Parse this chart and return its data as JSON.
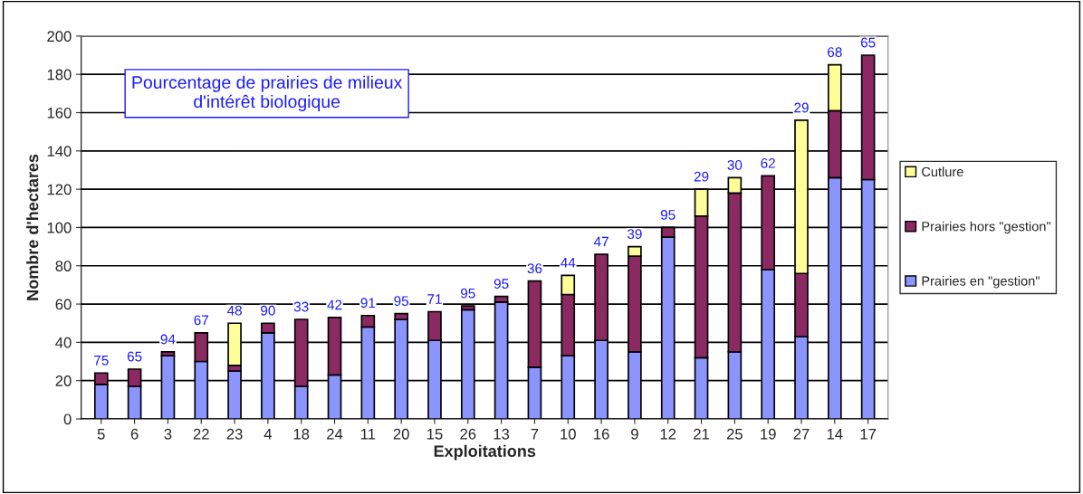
{
  "chart_data": {
    "type": "bar",
    "stacked": true,
    "title": "Pourcentage de prairies de milieux d'intérêt biologique",
    "xlabel": "Exploitations",
    "ylabel": "Nombre d'hectares",
    "categories": [
      "5",
      "6",
      "3",
      "22",
      "23",
      "4",
      "18",
      "24",
      "11",
      "20",
      "15",
      "26",
      "13",
      "7",
      "10",
      "16",
      "9",
      "12",
      "21",
      "25",
      "19",
      "27",
      "14",
      "17"
    ],
    "series": [
      {
        "name": "Prairies en \"gestion\"",
        "color": "#8c94ff",
        "values": [
          18,
          17,
          33,
          30,
          25,
          45,
          17,
          23,
          48,
          52,
          41,
          57,
          61,
          27,
          33,
          41,
          35,
          95,
          32,
          35,
          78,
          43,
          126,
          125
        ]
      },
      {
        "name": "Prairies hors \"gestion\"",
        "color": "#8b2a62",
        "values": [
          6,
          9,
          2,
          15,
          3,
          5,
          35,
          30,
          6,
          3,
          15,
          2,
          3,
          45,
          32,
          45,
          50,
          5,
          74,
          83,
          49,
          33,
          35,
          65
        ]
      },
      {
        "name": "Cutlure",
        "color": "#ffff99",
        "values": [
          null,
          null,
          null,
          null,
          22,
          null,
          null,
          null,
          null,
          null,
          null,
          null,
          null,
          null,
          10,
          null,
          5,
          null,
          14,
          8,
          null,
          80,
          24,
          null
        ]
      }
    ],
    "ylim": [
      0,
      200
    ],
    "yticks": [
      0,
      20,
      40,
      60,
      80,
      100,
      120,
      140,
      160,
      180,
      200
    ],
    "grid": "y",
    "legend": "right",
    "annotations": [
      {
        "text": "75",
        "x": "5",
        "y": 24
      },
      {
        "text": "65",
        "x": "6",
        "y": 26
      },
      {
        "text": "94",
        "x": "3",
        "y": 35
      },
      {
        "text": "67",
        "x": "22",
        "y": 45
      },
      {
        "text": "48",
        "x": "23",
        "y": 50
      },
      {
        "text": "90",
        "x": "4",
        "y": 50
      },
      {
        "text": "33",
        "x": "18",
        "y": 52
      },
      {
        "text": "42",
        "x": "24",
        "y": 53
      },
      {
        "text": "91",
        "x": "11",
        "y": 54
      },
      {
        "text": "95",
        "x": "20",
        "y": 55
      },
      {
        "text": "71",
        "x": "15",
        "y": 56
      },
      {
        "text": "95",
        "x": "26",
        "y": 59
      },
      {
        "text": "95",
        "x": "13",
        "y": 64
      },
      {
        "text": "36",
        "x": "7",
        "y": 72
      },
      {
        "text": "44",
        "x": "10",
        "y": 75
      },
      {
        "text": "47",
        "x": "16",
        "y": 86
      },
      {
        "text": "39",
        "x": "9",
        "y": 90
      },
      {
        "text": "95",
        "x": "12",
        "y": 100
      },
      {
        "text": "29",
        "x": "21",
        "y": 120
      },
      {
        "text": "30",
        "x": "25",
        "y": 126
      },
      {
        "text": "62",
        "x": "19",
        "y": 127
      },
      {
        "text": "29",
        "x": "27",
        "y": 156
      },
      {
        "text": "68",
        "x": "14",
        "y": 185
      },
      {
        "text": "65",
        "x": "17",
        "y": 190
      }
    ]
  }
}
